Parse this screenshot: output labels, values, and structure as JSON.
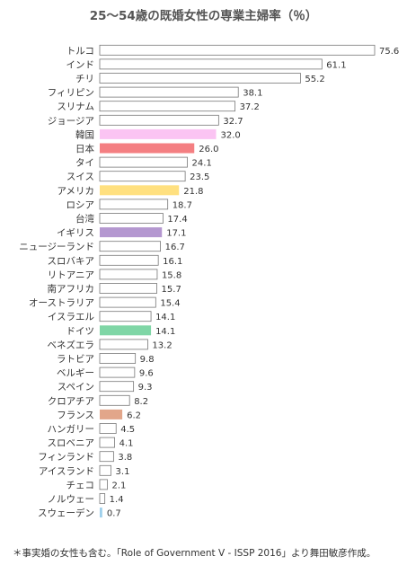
{
  "chart_data": {
    "type": "bar",
    "orientation": "horizontal",
    "title": "25～54歳の既婚女性の専業主婦率（％）",
    "categories": [
      "トルコ",
      "インド",
      "チリ",
      "フィリピン",
      "スリナム",
      "ジョージア",
      "韓国",
      "日本",
      "タイ",
      "スイス",
      "アメリカ",
      "ロシア",
      "台湾",
      "イギリス",
      "ニュージーランド",
      "スロバキア",
      "リトアニア",
      "南アフリカ",
      "オーストラリア",
      "イスラエル",
      "ドイツ",
      "ベネズエラ",
      "ラトビア",
      "ベルギー",
      "スペイン",
      "クロアチア",
      "フランス",
      "ハンガリー",
      "スロベニア",
      "フィンランド",
      "アイスランド",
      "チェコ",
      "ノルウェー",
      "スウェーデン"
    ],
    "values": [
      75.6,
      61.1,
      55.2,
      38.1,
      37.2,
      32.7,
      32.0,
      26.0,
      24.1,
      23.5,
      21.8,
      18.7,
      17.4,
      17.1,
      16.7,
      16.1,
      15.8,
      15.7,
      15.4,
      14.1,
      14.1,
      13.2,
      9.8,
      9.6,
      9.3,
      8.2,
      6.2,
      4.5,
      4.1,
      3.8,
      3.1,
      2.1,
      1.4,
      0.7
    ],
    "value_labels": [
      "75.6",
      "61.1",
      "55.2",
      "38.1",
      "37.2",
      "32.7",
      "32.0",
      "26.0",
      "24.1",
      "23.5",
      "21.8",
      "18.7",
      "17.4",
      "17.1",
      "16.7",
      "16.1",
      "15.8",
      "15.7",
      "15.4",
      "14.1",
      "14.1",
      "13.2",
      "9.8",
      "9.6",
      "9.3",
      "8.2",
      "6.2",
      "4.5",
      "4.1",
      "3.8",
      "3.1",
      "2.1",
      "1.4",
      "0.7"
    ],
    "highlights": {
      "韓国": "#fbc4f3",
      "日本": "#f47f82",
      "アメリカ": "#ffe07f",
      "イギリス": "#b497d0",
      "ドイツ": "#7fd6a6",
      "フランス": "#e2a68a",
      "スウェーデン": "#9fd0ec"
    },
    "default_bar_color": "#ffffff",
    "bar_border_color": "#777777",
    "xlim": [
      0,
      80
    ],
    "grid": false,
    "xlabel": "",
    "ylabel": ""
  },
  "footnote": "＊事実婚の女性も含む。「Role of Government V - ISSP 2016」より舞田敏彦作成。"
}
